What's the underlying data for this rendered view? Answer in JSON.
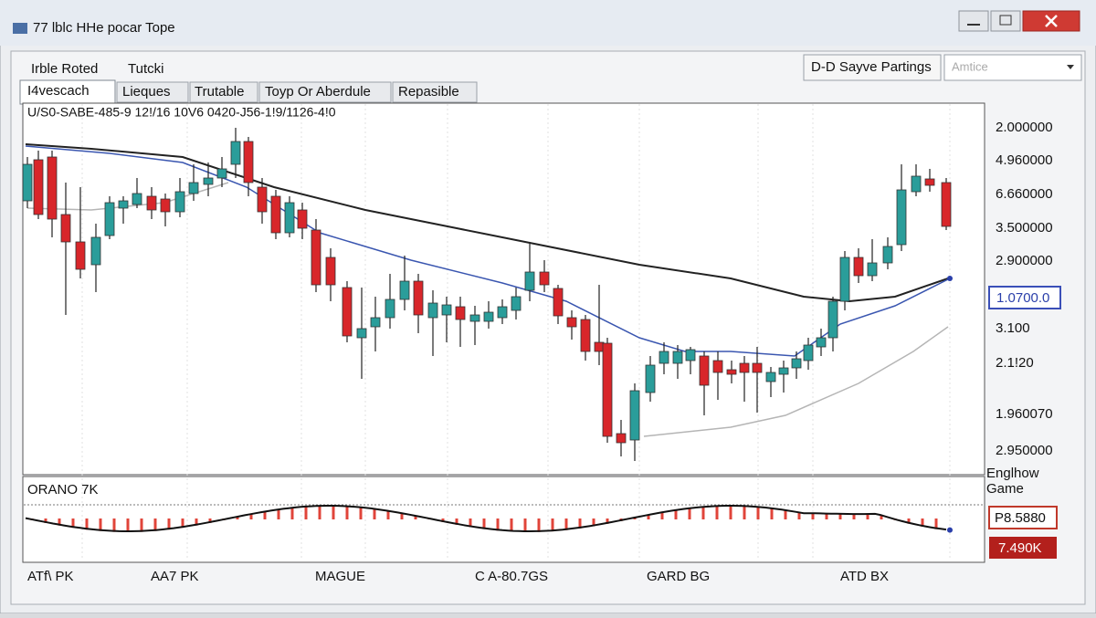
{
  "window": {
    "title": "77 lblc HHe pocar Tope"
  },
  "menu": [
    "Irble Roted",
    "Tutcki"
  ],
  "toolbar": {
    "label": "D-D Sayve Partings",
    "combo": "Amtice"
  },
  "tabs": [
    "I4vescach",
    "Lieques",
    "Trutable",
    "Toyp Or Aberdule",
    "Repasible"
  ],
  "chart": {
    "header": "U/S0-SABE-485-9 12!/16 10V6 0420-J56-1!9/1126-4!0",
    "price_labels": [
      "2.000000",
      "4.960000",
      "6.660000",
      "3.500000",
      "2.900000",
      "1.0700.0",
      "3.100",
      "2.1!20",
      "1.960070",
      "2.950000"
    ]
  },
  "indicator": {
    "title": "ORANO 7K",
    "side_label": "Englhow Game",
    "value_box": "P8.5880",
    "value_box_red": "7.490K"
  },
  "time_labels": [
    "ATf\\ PK",
    "AA7 PK",
    "MAGUE",
    "C A-80.7GS",
    "GARD BG",
    "ATD BX"
  ]
}
